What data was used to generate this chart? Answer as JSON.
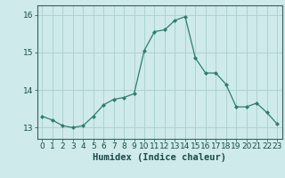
{
  "xlabel": "Humidex (Indice chaleur)",
  "ylabel": "",
  "x": [
    0,
    1,
    2,
    3,
    4,
    5,
    6,
    7,
    8,
    9,
    10,
    11,
    12,
    13,
    14,
    15,
    16,
    17,
    18,
    19,
    20,
    21,
    22,
    23
  ],
  "y": [
    13.3,
    13.2,
    13.05,
    13.0,
    13.05,
    13.3,
    13.6,
    13.75,
    13.8,
    13.9,
    15.05,
    15.55,
    15.6,
    15.85,
    15.95,
    14.85,
    14.45,
    14.45,
    14.15,
    13.55,
    13.55,
    13.65,
    13.4,
    13.1
  ],
  "line_color": "#2e7d6e",
  "marker": "D",
  "marker_size": 2.0,
  "background_color": "#ceeaea",
  "grid_color": "#aacece",
  "ylim": [
    12.7,
    16.25
  ],
  "xlim": [
    -0.5,
    23.5
  ],
  "yticks": [
    13,
    14,
    15,
    16
  ],
  "xticks": [
    0,
    1,
    2,
    3,
    4,
    5,
    6,
    7,
    8,
    9,
    10,
    11,
    12,
    13,
    14,
    15,
    16,
    17,
    18,
    19,
    20,
    21,
    22,
    23
  ],
  "tick_fontsize": 6.5,
  "xlabel_fontsize": 7.5
}
